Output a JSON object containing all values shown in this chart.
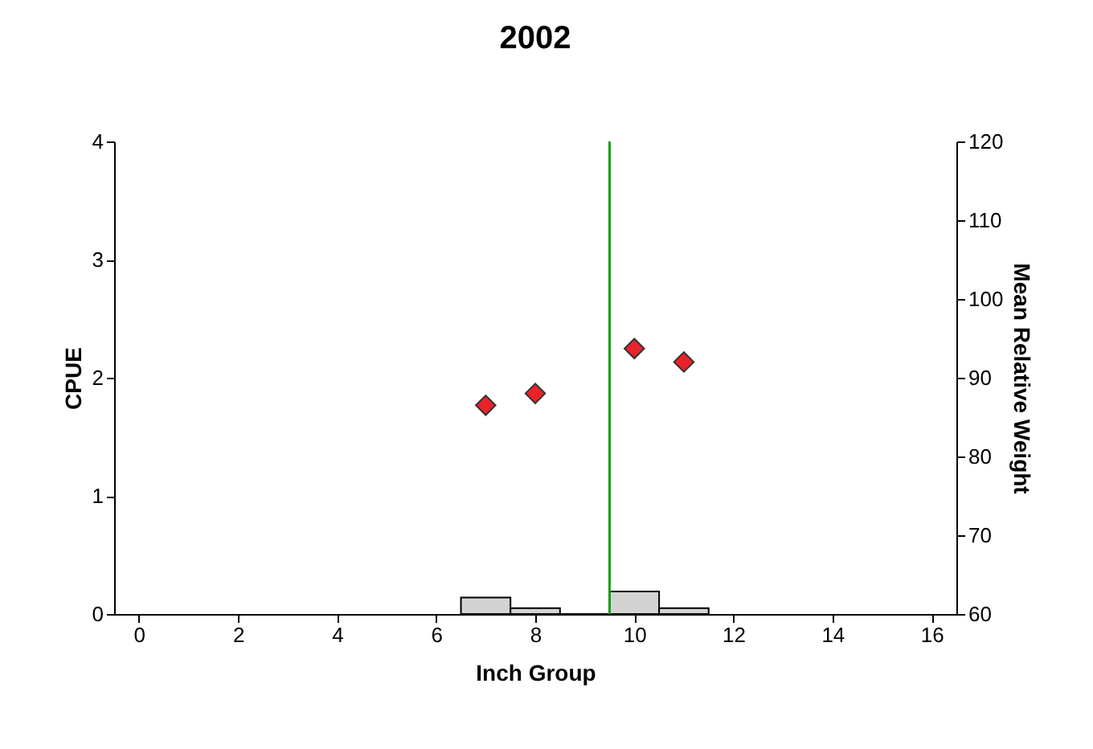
{
  "chart_data": {
    "type": "histogram",
    "title": "2002",
    "xlabel": "Inch Group",
    "ylabel": "CPUE",
    "y2label": "Mean Relative Weight",
    "xlim": [
      -0.5,
      16.5
    ],
    "xticks": [
      0,
      2,
      4,
      6,
      8,
      10,
      12,
      14,
      16
    ],
    "ylim": [
      0,
      4
    ],
    "yticks": [
      0,
      1,
      2,
      3,
      4
    ],
    "y2lim": [
      60,
      120
    ],
    "y2ticks": [
      60,
      70,
      80,
      90,
      100,
      110,
      120
    ],
    "series": [
      {
        "type": "histogram",
        "bins": [
          6.5,
          7.5,
          8.5,
          9.5,
          10.5,
          11.5
        ],
        "values": [
          0.14,
          0.05,
          0,
          0.19,
          0.05
        ],
        "color": "#d3d3d3"
      },
      {
        "type": "scatter",
        "x": [
          7,
          8,
          10,
          11
        ],
        "values": [
          86.5,
          88,
          93.7,
          92
        ],
        "axis": "y2",
        "color": "#e8232a",
        "marker": "diamond"
      }
    ],
    "ref_lines": [
      {
        "axis": "x",
        "value": 9.5,
        "color": "#1a9c1a"
      }
    ],
    "grid": false
  }
}
